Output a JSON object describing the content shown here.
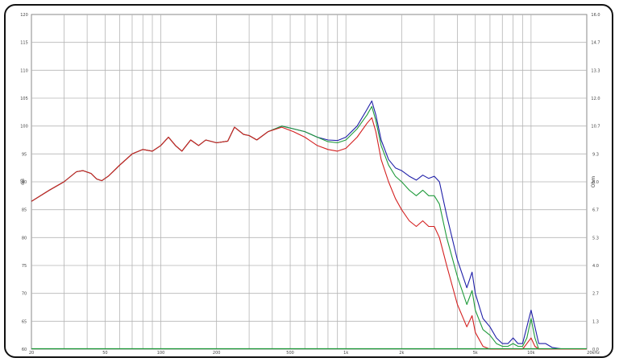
{
  "chart_data": {
    "type": "line",
    "xscale": "log",
    "xlim": [
      20,
      20000
    ],
    "ylim": [
      60,
      120
    ],
    "y2lim": [
      0,
      16.0
    ],
    "grid": true,
    "title": "",
    "xlabel": "",
    "ylabel": "dB",
    "y2label": "Ohm",
    "xtick_labels": [
      {
        "value": 20,
        "label": "20"
      },
      {
        "value": 50,
        "label": "50"
      },
      {
        "value": 100,
        "label": "100"
      },
      {
        "value": 200,
        "label": "200"
      },
      {
        "value": 500,
        "label": "500"
      },
      {
        "value": 1000,
        "label": "1k"
      },
      {
        "value": 2000,
        "label": "2k"
      },
      {
        "value": 5000,
        "label": "5k"
      },
      {
        "value": 10000,
        "label": "10k"
      },
      {
        "value": 20000,
        "label": "20kHz"
      }
    ],
    "ytick_labels": [
      "120",
      "115",
      "110",
      "105",
      "100",
      "95",
      "90",
      "85",
      "80",
      "75",
      "70",
      "65",
      "60"
    ],
    "y2tick_labels": [
      "16.0",
      "14.7",
      "13.3",
      "12.0",
      "10.7",
      "9.3",
      "8.0",
      "6.7",
      "5.3",
      "4.0",
      "2.7",
      "1.3",
      "0.0"
    ],
    "series": [
      {
        "color": "#1f1fa8",
        "points": [
          [
            20,
            86.5
          ],
          [
            25,
            88.5
          ],
          [
            30,
            90
          ],
          [
            35,
            91.8
          ],
          [
            38,
            92
          ],
          [
            42,
            91.5
          ],
          [
            45,
            90.5
          ],
          [
            48,
            90.2
          ],
          [
            52,
            91
          ],
          [
            60,
            93
          ],
          [
            70,
            95
          ],
          [
            80,
            95.8
          ],
          [
            90,
            95.5
          ],
          [
            100,
            96.5
          ],
          [
            110,
            98
          ],
          [
            120,
            96.5
          ],
          [
            130,
            95.5
          ],
          [
            145,
            97.5
          ],
          [
            160,
            96.5
          ],
          [
            175,
            97.5
          ],
          [
            200,
            97
          ],
          [
            230,
            97.3
          ],
          [
            250,
            99.8
          ],
          [
            280,
            98.5
          ],
          [
            300,
            98.3
          ],
          [
            330,
            97.5
          ],
          [
            380,
            99
          ],
          [
            450,
            100
          ],
          [
            520,
            99.5
          ],
          [
            600,
            99
          ],
          [
            700,
            98
          ],
          [
            800,
            97.5
          ],
          [
            900,
            97.4
          ],
          [
            1000,
            98
          ],
          [
            1150,
            100
          ],
          [
            1300,
            103
          ],
          [
            1380,
            104.5
          ],
          [
            1450,
            102
          ],
          [
            1550,
            97.5
          ],
          [
            1700,
            94
          ],
          [
            1850,
            92.5
          ],
          [
            2000,
            92
          ],
          [
            2200,
            91
          ],
          [
            2400,
            90.3
          ],
          [
            2600,
            91.2
          ],
          [
            2800,
            90.6
          ],
          [
            3000,
            91
          ],
          [
            3200,
            90
          ],
          [
            3500,
            84
          ],
          [
            4000,
            76
          ],
          [
            4500,
            71
          ],
          [
            4800,
            73.8
          ],
          [
            5000,
            70
          ],
          [
            5500,
            65.5
          ],
          [
            6000,
            64
          ],
          [
            6500,
            62
          ],
          [
            7000,
            61
          ],
          [
            7500,
            61
          ],
          [
            8000,
            62
          ],
          [
            8500,
            61
          ],
          [
            9000,
            61
          ],
          [
            9500,
            64
          ],
          [
            10000,
            67
          ],
          [
            10500,
            64
          ],
          [
            11000,
            61
          ],
          [
            12000,
            61
          ],
          [
            13000,
            60.3
          ],
          [
            15000,
            60
          ],
          [
            20000,
            60
          ]
        ]
      },
      {
        "color": "#1e9a3a",
        "points": [
          [
            20,
            86.5
          ],
          [
            25,
            88.5
          ],
          [
            30,
            90
          ],
          [
            35,
            91.8
          ],
          [
            38,
            92
          ],
          [
            42,
            91.5
          ],
          [
            45,
            90.5
          ],
          [
            48,
            90.2
          ],
          [
            52,
            91
          ],
          [
            60,
            93
          ],
          [
            70,
            95
          ],
          [
            80,
            95.8
          ],
          [
            90,
            95.5
          ],
          [
            100,
            96.5
          ],
          [
            110,
            98
          ],
          [
            120,
            96.5
          ],
          [
            130,
            95.5
          ],
          [
            145,
            97.5
          ],
          [
            160,
            96.5
          ],
          [
            175,
            97.5
          ],
          [
            200,
            97
          ],
          [
            230,
            97.3
          ],
          [
            250,
            99.8
          ],
          [
            280,
            98.5
          ],
          [
            300,
            98.3
          ],
          [
            330,
            97.5
          ],
          [
            380,
            99
          ],
          [
            450,
            100
          ],
          [
            520,
            99.5
          ],
          [
            600,
            99
          ],
          [
            700,
            98
          ],
          [
            800,
            97.2
          ],
          [
            900,
            97
          ],
          [
            1000,
            97.5
          ],
          [
            1150,
            99.5
          ],
          [
            1300,
            102
          ],
          [
            1380,
            103.5
          ],
          [
            1450,
            101
          ],
          [
            1550,
            96.5
          ],
          [
            1700,
            93
          ],
          [
            1850,
            91
          ],
          [
            2000,
            90
          ],
          [
            2200,
            88.5
          ],
          [
            2400,
            87.5
          ],
          [
            2600,
            88.5
          ],
          [
            2800,
            87.5
          ],
          [
            3000,
            87.5
          ],
          [
            3200,
            86
          ],
          [
            3500,
            80
          ],
          [
            4000,
            73
          ],
          [
            4500,
            68
          ],
          [
            4800,
            70.5
          ],
          [
            5000,
            67
          ],
          [
            5500,
            63.5
          ],
          [
            6000,
            62.5
          ],
          [
            6500,
            61
          ],
          [
            7000,
            60.5
          ],
          [
            7500,
            60.5
          ],
          [
            8000,
            61
          ],
          [
            8500,
            60.5
          ],
          [
            9000,
            60.5
          ],
          [
            9500,
            62
          ],
          [
            10000,
            65.5
          ],
          [
            10500,
            62
          ],
          [
            11000,
            60
          ],
          [
            12000,
            60
          ],
          [
            15000,
            60
          ],
          [
            20000,
            60
          ]
        ]
      },
      {
        "color": "#d42020",
        "points": [
          [
            20,
            86.5
          ],
          [
            25,
            88.5
          ],
          [
            30,
            90
          ],
          [
            35,
            91.8
          ],
          [
            38,
            92
          ],
          [
            42,
            91.5
          ],
          [
            45,
            90.5
          ],
          [
            48,
            90.2
          ],
          [
            52,
            91
          ],
          [
            60,
            93
          ],
          [
            70,
            95
          ],
          [
            80,
            95.8
          ],
          [
            90,
            95.5
          ],
          [
            100,
            96.5
          ],
          [
            110,
            98
          ],
          [
            120,
            96.5
          ],
          [
            130,
            95.5
          ],
          [
            145,
            97.5
          ],
          [
            160,
            96.5
          ],
          [
            175,
            97.5
          ],
          [
            200,
            97
          ],
          [
            230,
            97.3
          ],
          [
            250,
            99.8
          ],
          [
            280,
            98.5
          ],
          [
            300,
            98.3
          ],
          [
            330,
            97.5
          ],
          [
            380,
            99
          ],
          [
            450,
            99.8
          ],
          [
            520,
            99
          ],
          [
            600,
            98
          ],
          [
            700,
            96.5
          ],
          [
            800,
            95.8
          ],
          [
            900,
            95.5
          ],
          [
            1000,
            96
          ],
          [
            1150,
            98
          ],
          [
            1300,
            100.5
          ],
          [
            1380,
            101.5
          ],
          [
            1450,
            99
          ],
          [
            1550,
            94
          ],
          [
            1700,
            90
          ],
          [
            1850,
            87
          ],
          [
            2000,
            85
          ],
          [
            2200,
            83
          ],
          [
            2400,
            82
          ],
          [
            2600,
            83
          ],
          [
            2800,
            82
          ],
          [
            3000,
            82
          ],
          [
            3200,
            80
          ],
          [
            3500,
            75
          ],
          [
            4000,
            68
          ],
          [
            4500,
            64
          ],
          [
            4800,
            66
          ],
          [
            5000,
            63
          ],
          [
            5500,
            60.5
          ],
          [
            6000,
            60
          ],
          [
            7000,
            60
          ],
          [
            8000,
            60
          ],
          [
            9000,
            60
          ],
          [
            9500,
            61
          ],
          [
            10000,
            62
          ],
          [
            10500,
            60.5
          ],
          [
            11000,
            60
          ],
          [
            20000,
            60
          ]
        ]
      }
    ]
  }
}
